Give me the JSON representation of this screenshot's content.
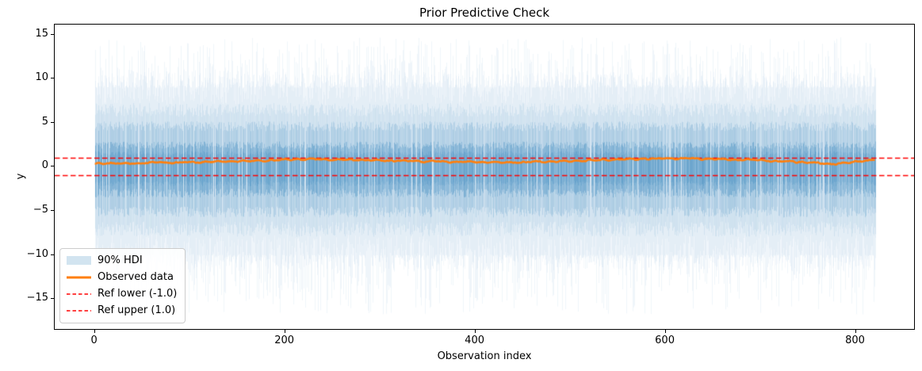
{
  "figure": {
    "title": "Prior Predictive Check",
    "xlabel": "Observation index",
    "ylabel": "y"
  },
  "legend": {
    "items": [
      {
        "id": "hdi",
        "label": "90% HDI",
        "type": "patch",
        "color": "#d2e4f0"
      },
      {
        "id": "observed",
        "label": "Observed data",
        "type": "line",
        "color": "#ff7f0e"
      },
      {
        "id": "ref-lower",
        "label": "Ref lower (-1.0)",
        "type": "dashed",
        "color": "#ff0000"
      },
      {
        "id": "ref-upper",
        "label": "Ref upper (1.0)",
        "type": "dashed",
        "color": "#ff0000"
      }
    ]
  },
  "chart_data": {
    "type": "line",
    "title": "Prior Predictive Check",
    "xlabel": "Observation index",
    "ylabel": "y",
    "xlim": [
      -42.2,
      861.2
    ],
    "ylim": [
      -18.4,
      16.15
    ],
    "x_ticks": [
      0,
      200,
      400,
      600,
      800
    ],
    "y_ticks": [
      15,
      10,
      5,
      0,
      -5,
      -10,
      -15
    ],
    "n_observations": 821,
    "grid": false,
    "legend_position": "lower left",
    "ref_lines": {
      "lower": -1.0,
      "upper": 1.0,
      "color": "#ff0000",
      "style": "dashed"
    },
    "hdi_band": {
      "label": "90% HDI",
      "color_rgb": [
        31,
        119,
        180
      ],
      "core_upper": 2.4,
      "core_lower": -2.9,
      "dense_upper": 4.5,
      "dense_lower": -5.0,
      "mid_upper": 6.3,
      "mid_lower": -6.9,
      "haze_upper": 10.8,
      "haze_lower": -11.8,
      "spike_max_upper": 14.7,
      "spike_max_lower": -16.8
    },
    "observed": {
      "label": "Observed data",
      "color": "#ff7f0e",
      "keypoints": [
        [
          0,
          0.33
        ],
        [
          15,
          0.45
        ],
        [
          30,
          0.38
        ],
        [
          50,
          0.45
        ],
        [
          80,
          0.5
        ],
        [
          110,
          0.55
        ],
        [
          140,
          0.62
        ],
        [
          170,
          0.7
        ],
        [
          200,
          0.8
        ],
        [
          230,
          0.85
        ],
        [
          260,
          0.82
        ],
        [
          290,
          0.76
        ],
        [
          320,
          0.7
        ],
        [
          360,
          0.62
        ],
        [
          400,
          0.55
        ],
        [
          430,
          0.5
        ],
        [
          470,
          0.58
        ],
        [
          510,
          0.7
        ],
        [
          550,
          0.82
        ],
        [
          580,
          0.9
        ],
        [
          610,
          0.95
        ],
        [
          640,
          0.9
        ],
        [
          670,
          0.82
        ],
        [
          700,
          0.74
        ],
        [
          730,
          0.62
        ],
        [
          755,
          0.48
        ],
        [
          775,
          0.35
        ],
        [
          790,
          0.45
        ],
        [
          805,
          0.65
        ],
        [
          820,
          0.78
        ]
      ]
    }
  }
}
